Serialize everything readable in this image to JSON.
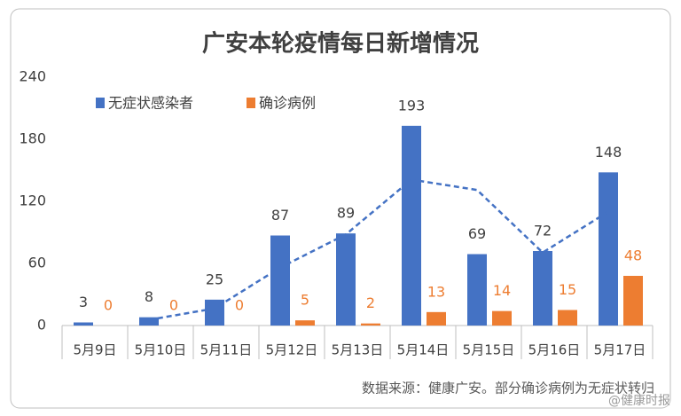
{
  "chart_data": {
    "type": "bar",
    "title": "广安本轮疫情每日新增情况",
    "categories": [
      "5月9日",
      "5月10日",
      "5月11日",
      "5月12日",
      "5月13日",
      "5月14日",
      "5月15日",
      "5月16日",
      "5月17日"
    ],
    "series": [
      {
        "name": "无症状感染者",
        "color": "#4472c4",
        "values": [
          3,
          8,
          25,
          87,
          89,
          193,
          69,
          72,
          148
        ]
      },
      {
        "name": "确诊病例",
        "color": "#ed7d31",
        "values": [
          0,
          0,
          0,
          5,
          2,
          13,
          14,
          15,
          48
        ]
      }
    ],
    "trendline": {
      "color": "#4472c4",
      "values": [
        null,
        5.5,
        16.5,
        56,
        88,
        141,
        131,
        70.5,
        110
      ]
    },
    "ylim": [
      0,
      240
    ],
    "yticks": [
      0,
      60,
      120,
      180,
      240
    ],
    "note": "数据来源：健康广安。部分确诊病例为无症状转归",
    "watermark": "@健康时报"
  }
}
